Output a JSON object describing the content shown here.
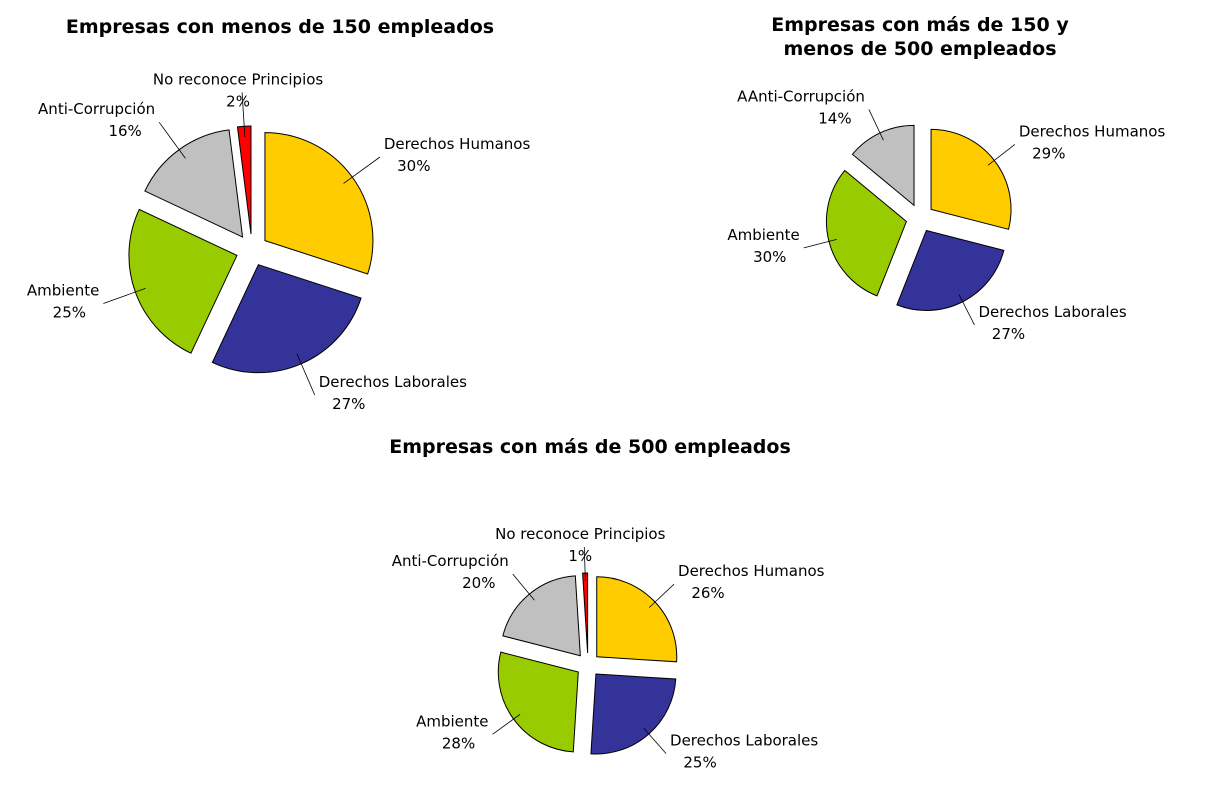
{
  "chart_data": [
    {
      "type": "pie",
      "title": "Empresas con menos de 150 empleados",
      "categories": [
        "Derechos Humanos",
        "Derechos Laborales",
        "Ambiente",
        "Anti-Corrupción",
        "No reconoce Principios"
      ],
      "values": [
        30,
        27,
        25,
        16,
        2
      ],
      "value_labels": [
        "30%",
        "27%",
        "25%",
        "16%",
        "2%"
      ],
      "colors": [
        "#ffcc00",
        "#333399",
        "#99cc00",
        "#c0c0c0",
        "#ff0000"
      ]
    },
    {
      "type": "pie",
      "title": "Empresas con más de 150 y menos de 500 empleados",
      "categories": [
        "Derechos Humanos",
        "Derechos Laborales",
        "Ambiente",
        "AAnti-Corrupción"
      ],
      "values": [
        29,
        27,
        30,
        14
      ],
      "value_labels": [
        "29%",
        "27%",
        "30%",
        "14%"
      ],
      "colors": [
        "#ffcc00",
        "#333399",
        "#99cc00",
        "#c0c0c0"
      ]
    },
    {
      "type": "pie",
      "title": "Empresas con más de 500 empleados",
      "categories": [
        "Derechos Humanos",
        "Derechos Laborales",
        "Ambiente",
        "Anti-Corrupción",
        "No reconoce Principios"
      ],
      "values": [
        26,
        25,
        28,
        20,
        1
      ],
      "value_labels": [
        "26%",
        "25%",
        "28%",
        "20%",
        "1%"
      ],
      "colors": [
        "#ffcc00",
        "#333399",
        "#99cc00",
        "#c0c0c0",
        "#ff0000"
      ]
    }
  ]
}
